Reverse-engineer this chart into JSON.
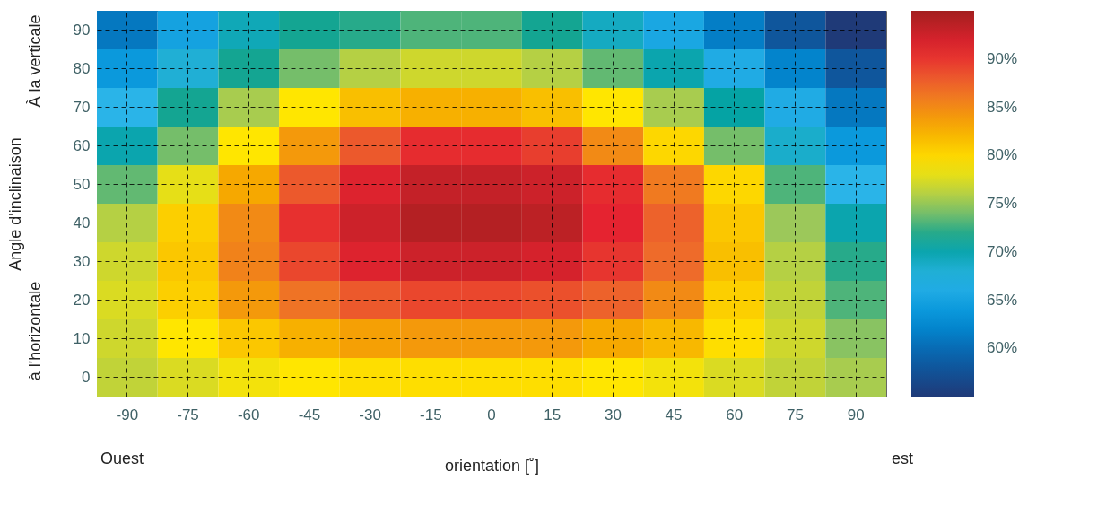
{
  "chart_data": {
    "type": "heatmap",
    "xlabel": "orientation [˚]",
    "ylabel": "Angle d'inclinaison",
    "annotations": [
      "À la verticale",
      "à l'horizontale",
      "Ouest",
      "est"
    ],
    "categories": [
      "-90",
      "-75",
      "-60",
      "-45",
      "-30",
      "-15",
      "0",
      "15",
      "30",
      "45",
      "60",
      "75",
      "90"
    ],
    "y_categories": [
      "90",
      "80",
      "70",
      "60",
      "50",
      "40",
      "30",
      "20",
      "10",
      "0"
    ],
    "cells": [
      [
        61,
        65,
        69.5,
        71.5,
        72,
        73,
        73,
        71.5,
        69,
        65.5,
        61.5,
        58,
        55
      ],
      [
        64,
        68,
        71.5,
        74,
        76,
        77,
        77,
        76,
        73.5,
        70,
        66,
        62,
        58
      ],
      [
        67,
        71.5,
        75.5,
        79,
        81.5,
        82.5,
        82.5,
        81.5,
        79,
        75.5,
        70.5,
        66,
        61
      ],
      [
        70,
        74,
        79,
        84,
        88,
        90.5,
        90.5,
        89.5,
        85,
        80,
        74,
        68.5,
        64
      ],
      [
        73.5,
        78,
        83,
        88,
        91.5,
        93,
        93,
        92.5,
        90.5,
        86,
        80,
        73,
        67
      ],
      [
        76,
        80.5,
        85,
        90.3,
        92.5,
        94,
        94,
        93.5,
        91,
        87.5,
        81,
        75,
        70
      ],
      [
        77,
        81,
        85.5,
        89,
        91.5,
        92.5,
        92.5,
        92,
        90,
        87,
        81.5,
        76,
        72
      ],
      [
        77.5,
        80.5,
        84,
        86.5,
        88,
        89,
        89,
        88.5,
        87.5,
        85,
        80.5,
        76.5,
        73
      ],
      [
        77,
        79,
        81,
        82.5,
        83.5,
        84,
        84,
        84,
        83,
        82,
        79.5,
        77,
        74.5
      ],
      [
        76.5,
        77.5,
        78.5,
        79,
        79.5,
        79.5,
        79.5,
        79.5,
        79,
        78.5,
        77.5,
        76.5,
        75.5
      ]
    ],
    "clim": [
      55,
      95
    ],
    "cticks": [
      {
        "value": 60,
        "label": "60%"
      },
      {
        "value": 65,
        "label": "65%"
      },
      {
        "value": 70,
        "label": "70%"
      },
      {
        "value": 75,
        "label": "75%"
      },
      {
        "value": 80,
        "label": "80%"
      },
      {
        "value": 85,
        "label": "85%"
      },
      {
        "value": 90,
        "label": "90%"
      }
    ],
    "grid": true
  }
}
